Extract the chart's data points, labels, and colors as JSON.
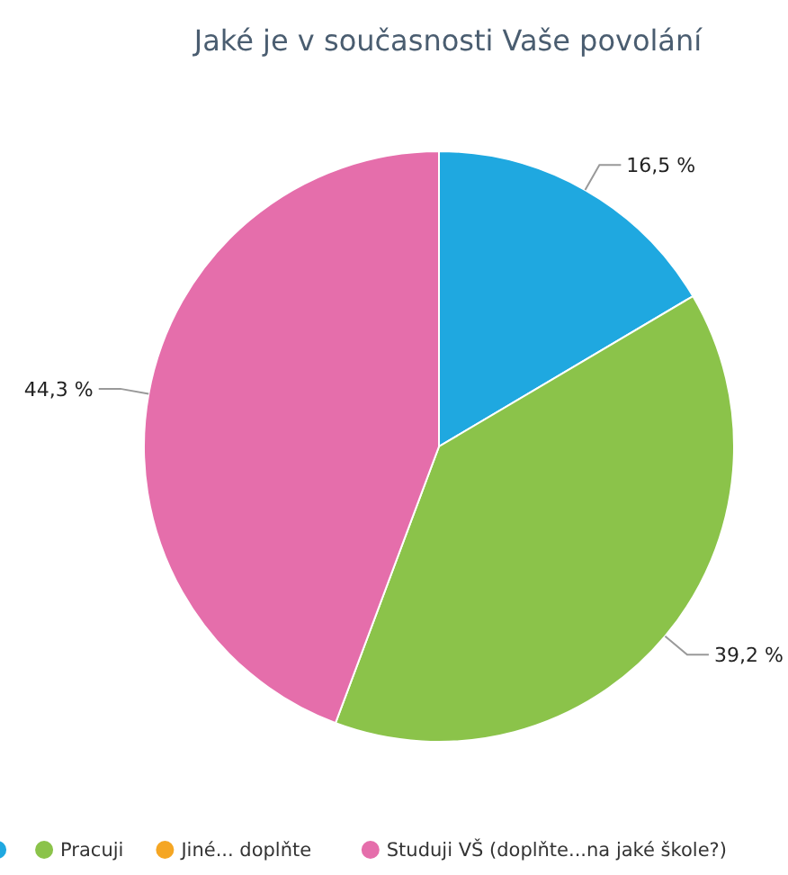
{
  "chart_data": {
    "type": "pie",
    "title": "Jaké je v současnosti Vaše povolání",
    "categories": [
      null,
      "Pracuji",
      "Jiné... doplňte",
      "Studuji VŠ (doplňte...na jaké škole?)"
    ],
    "values": [
      16.5,
      39.2,
      0,
      44.3
    ],
    "colors": [
      "#1fa8e0",
      "#8bc34a",
      "#f5a623",
      "#e56eab"
    ],
    "value_labels": [
      "16,5 %",
      "39,2 %",
      null,
      "44,3 %"
    ],
    "legend": "bottom"
  }
}
